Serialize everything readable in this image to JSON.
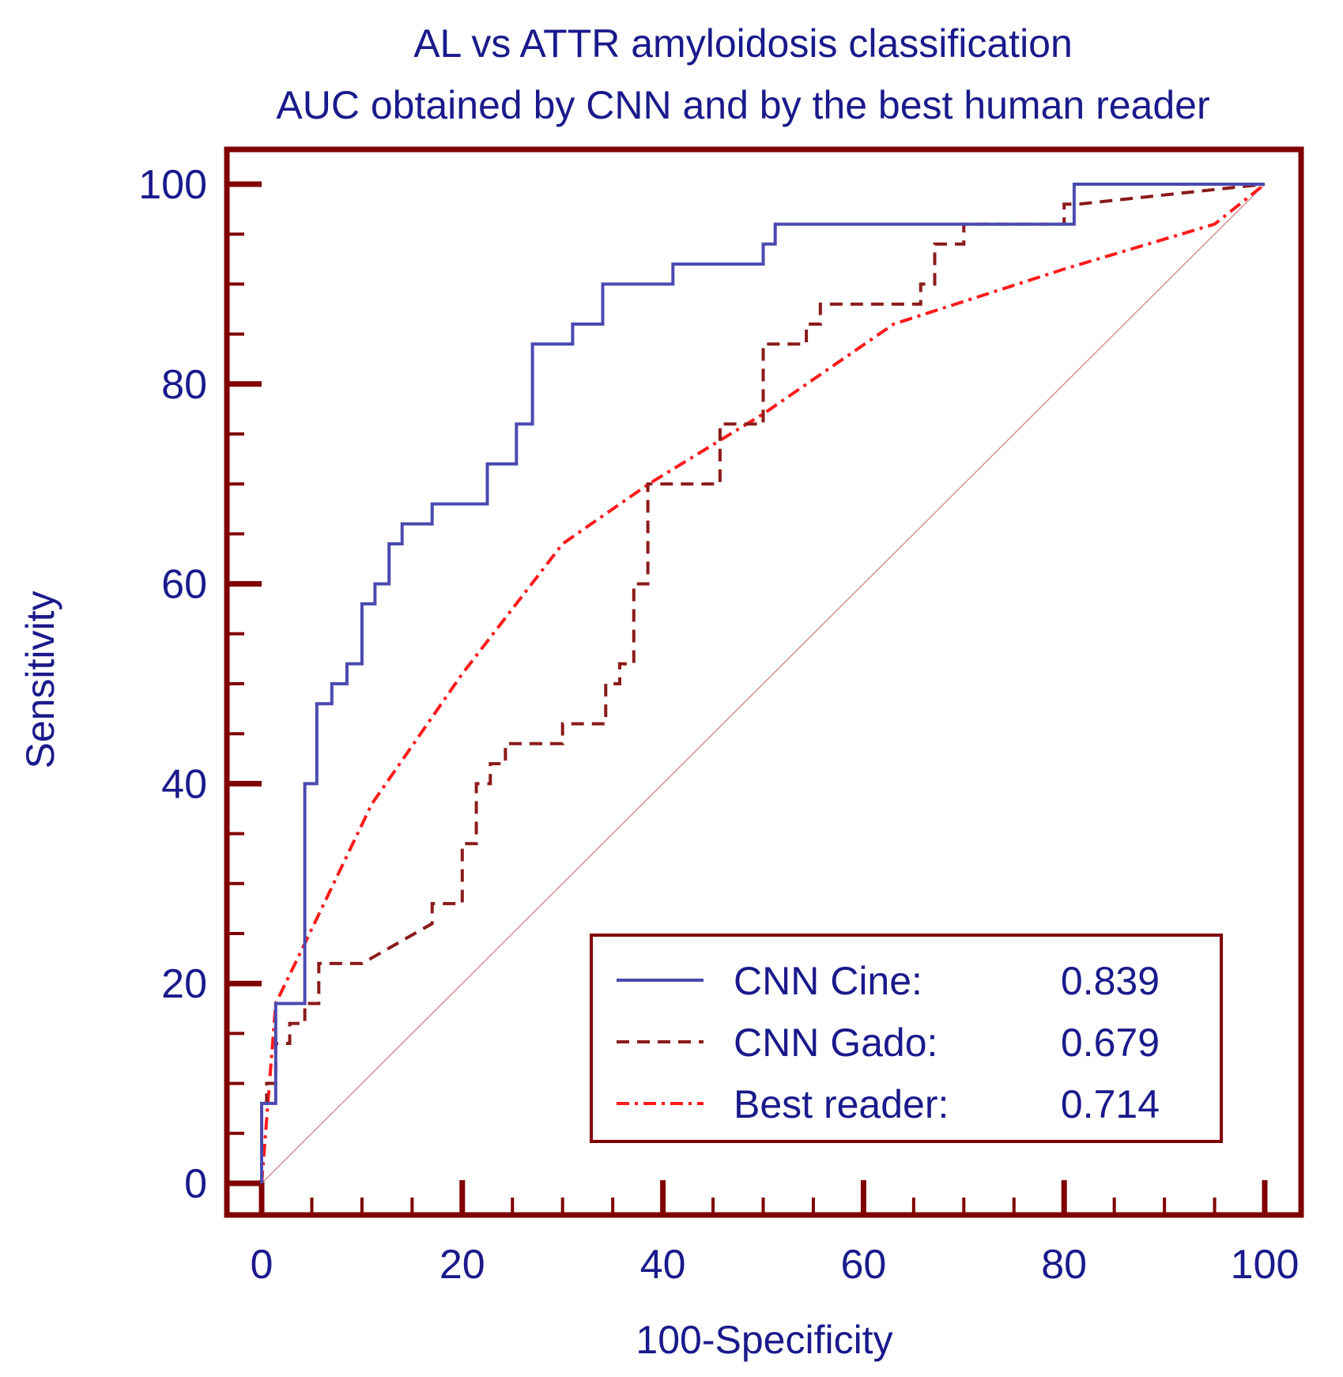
{
  "chart_data": {
    "type": "line",
    "title": "AL vs ATTR amyloidosis classification",
    "subtitle": "AUC obtained by CNN and by the best human reader",
    "xlabel": "100-Specificity",
    "ylabel": "Sensitivity",
    "xlim": [
      0,
      100
    ],
    "ylim": [
      0,
      100
    ],
    "xticks": [
      0,
      20,
      40,
      60,
      80,
      100
    ],
    "yticks": [
      0,
      20,
      40,
      60,
      80,
      100
    ],
    "legend_position": "bottom-right",
    "colors": {
      "frame": "#800000",
      "text": "#1a1a8c",
      "cnn_cine": "#4a4ab0",
      "cnn_gado": "#8b1a1a",
      "best_reader": "#ff1a1a",
      "diagonal": "#d49090"
    },
    "series": [
      {
        "name": "CNN Cine:",
        "auc": "0.839",
        "style": "solid",
        "x": [
          0,
          0,
          1.4,
          1.4,
          1.4,
          4.3,
          4.3,
          5.5,
          5.5,
          7,
          7,
          8.5,
          8.5,
          10,
          10,
          11.3,
          11.3,
          12.7,
          12.7,
          14,
          14,
          17,
          17,
          22.5,
          22.5,
          25.4,
          25.4,
          27,
          27,
          31,
          31,
          34,
          34,
          41,
          41,
          50,
          50,
          51.2,
          51.2,
          81,
          81,
          100
        ],
        "y": [
          0,
          8,
          8,
          18,
          18,
          18,
          40,
          40,
          48,
          48,
          50,
          50,
          52,
          52,
          58,
          58,
          60,
          60,
          64,
          64,
          66,
          66,
          68,
          68,
          72,
          72,
          76,
          76,
          84,
          84,
          86,
          86,
          90,
          90,
          92,
          92,
          94,
          94,
          96,
          96,
          100,
          100
        ]
      },
      {
        "name": "CNN Gado:",
        "auc": "0.679",
        "style": "dashed",
        "x": [
          0,
          0,
          0.5,
          0.5,
          1.4,
          1.4,
          2.8,
          2.8,
          4.3,
          4.3,
          5.7,
          5.7,
          10,
          17,
          17,
          20,
          20,
          21.4,
          21.4,
          22.8,
          22.8,
          24.3,
          24.3,
          30,
          30,
          34.3,
          34.3,
          35.7,
          35.7,
          37.1,
          37.1,
          38.5,
          38.5,
          45.7,
          45.7,
          50,
          50,
          54.3,
          54.3,
          55.7,
          55.7,
          65.7,
          65.7,
          67.1,
          67.1,
          70,
          70,
          80,
          80,
          81.4,
          81.4,
          100
        ],
        "y": [
          0,
          8,
          8,
          10,
          10,
          14,
          14,
          16,
          16,
          18,
          18,
          22,
          22,
          26,
          28,
          28,
          34,
          34,
          40,
          40,
          42,
          42,
          44,
          44,
          46,
          46,
          50,
          50,
          52,
          52,
          60,
          60,
          70,
          70,
          76,
          76,
          84,
          84,
          86,
          86,
          88,
          88,
          90,
          90,
          94,
          94,
          96,
          96,
          98,
          98,
          98,
          100
        ]
      },
      {
        "name": "Best reader:",
        "auc": "0.714",
        "style": "dashdot",
        "x": [
          0,
          1.4,
          4.3,
          11,
          20,
          30,
          38.6,
          50,
          63,
          80,
          95,
          100
        ],
        "y": [
          0,
          18,
          24,
          38,
          51,
          64,
          70,
          77,
          86,
          91.5,
          96,
          100
        ]
      },
      {
        "name": "",
        "style": "diagonal",
        "x": [
          0,
          100
        ],
        "y": [
          0,
          100
        ]
      }
    ]
  }
}
